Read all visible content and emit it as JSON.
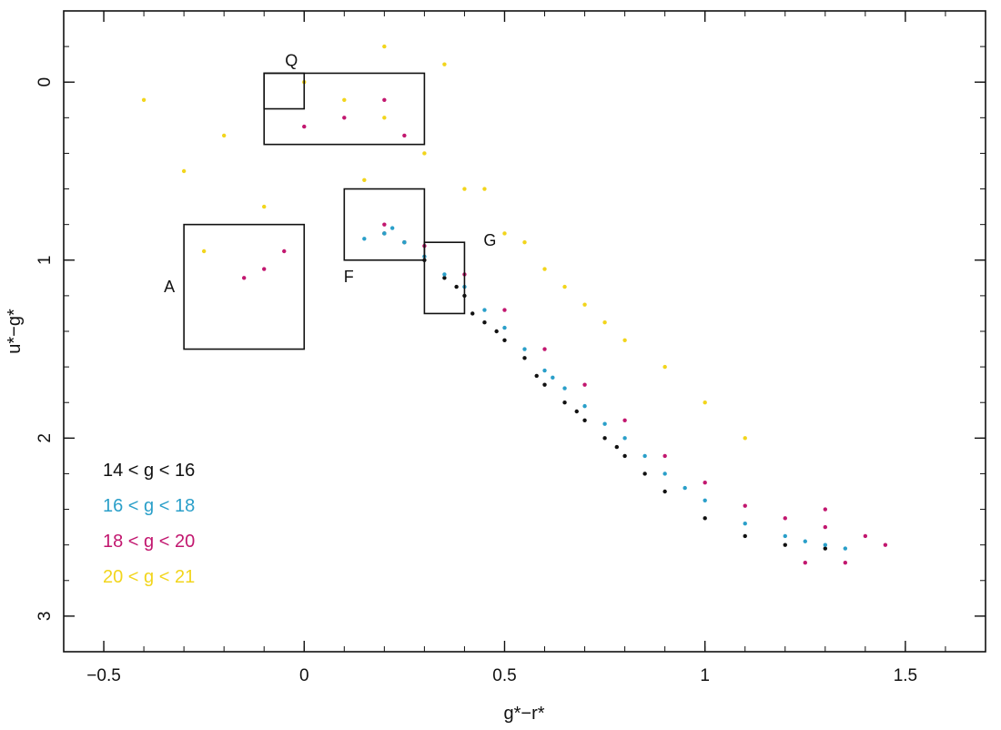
{
  "chart_data": {
    "type": "scatter",
    "xlabel": "g*−r*",
    "ylabel": "u*−g*",
    "xlim": [
      -0.6,
      1.7
    ],
    "ylim": [
      3.2,
      -0.4
    ],
    "y_inverted": true,
    "grid": false,
    "x_ticks": [
      {
        "value": -0.5,
        "label": "−0.5"
      },
      {
        "value": 0,
        "label": "0"
      },
      {
        "value": 0.5,
        "label": "0.5"
      },
      {
        "value": 1,
        "label": "1"
      },
      {
        "value": 1.5,
        "label": "1.5"
      }
    ],
    "y_ticks": [
      {
        "value": 0,
        "label": "0"
      },
      {
        "value": 1,
        "label": "1"
      },
      {
        "value": 2,
        "label": "2"
      },
      {
        "value": 3,
        "label": "3"
      }
    ],
    "legend_position": "bottom-left",
    "series": [
      {
        "name": "14 < g < 16",
        "color": "#111111",
        "points": [
          [
            0.2,
            0.85
          ],
          [
            0.25,
            0.9
          ],
          [
            0.3,
            1.0
          ],
          [
            0.35,
            1.1
          ],
          [
            0.4,
            1.2
          ],
          [
            0.45,
            1.35
          ],
          [
            0.5,
            1.45
          ],
          [
            0.55,
            1.55
          ],
          [
            0.6,
            1.7
          ],
          [
            0.65,
            1.8
          ],
          [
            0.7,
            1.9
          ],
          [
            0.75,
            2.0
          ],
          [
            0.8,
            2.1
          ],
          [
            0.85,
            2.2
          ],
          [
            0.9,
            2.3
          ],
          [
            1.0,
            2.45
          ],
          [
            1.1,
            2.55
          ],
          [
            1.2,
            2.6
          ],
          [
            1.3,
            2.62
          ],
          [
            0.38,
            1.15
          ],
          [
            0.42,
            1.3
          ],
          [
            0.48,
            1.4
          ],
          [
            0.58,
            1.65
          ],
          [
            0.68,
            1.85
          ],
          [
            0.78,
            2.05
          ]
        ]
      },
      {
        "name": "16 < g < 18",
        "color": "#2a9fc9",
        "points": [
          [
            0.2,
            0.85
          ],
          [
            0.25,
            0.9
          ],
          [
            0.3,
            0.98
          ],
          [
            0.35,
            1.08
          ],
          [
            0.4,
            1.15
          ],
          [
            0.45,
            1.28
          ],
          [
            0.5,
            1.38
          ],
          [
            0.55,
            1.5
          ],
          [
            0.6,
            1.62
          ],
          [
            0.65,
            1.72
          ],
          [
            0.7,
            1.82
          ],
          [
            0.8,
            2.0
          ],
          [
            0.9,
            2.2
          ],
          [
            1.0,
            2.35
          ],
          [
            1.1,
            2.48
          ],
          [
            1.2,
            2.55
          ],
          [
            1.3,
            2.6
          ],
          [
            1.35,
            2.62
          ],
          [
            0.15,
            0.88
          ],
          [
            0.22,
            0.82
          ],
          [
            0.62,
            1.66
          ],
          [
            0.75,
            1.92
          ],
          [
            0.85,
            2.1
          ],
          [
            0.95,
            2.28
          ],
          [
            1.25,
            2.58
          ]
        ]
      },
      {
        "name": "18 < g < 20",
        "color": "#c2176f",
        "points": [
          [
            0.2,
            0.8
          ],
          [
            0.3,
            0.92
          ],
          [
            0.4,
            1.08
          ],
          [
            0.5,
            1.28
          ],
          [
            0.6,
            1.5
          ],
          [
            0.7,
            1.7
          ],
          [
            0.8,
            1.9
          ],
          [
            0.9,
            2.1
          ],
          [
            1.0,
            2.25
          ],
          [
            1.1,
            2.38
          ],
          [
            1.2,
            2.45
          ],
          [
            1.3,
            2.5
          ],
          [
            1.4,
            2.55
          ],
          [
            1.45,
            2.6
          ],
          [
            -0.15,
            1.1
          ],
          [
            -0.1,
            1.05
          ],
          [
            -0.05,
            0.95
          ],
          [
            0.0,
            0.25
          ],
          [
            0.1,
            0.2
          ],
          [
            0.2,
            0.1
          ],
          [
            0.25,
            0.3
          ],
          [
            1.3,
            2.4
          ],
          [
            1.35,
            2.7
          ],
          [
            1.25,
            2.7
          ]
        ]
      },
      {
        "name": "20 < g < 21",
        "color": "#f2d51c",
        "points": [
          [
            0.0,
            0.0
          ],
          [
            0.1,
            0.1
          ],
          [
            0.2,
            0.2
          ],
          [
            0.3,
            0.4
          ],
          [
            0.4,
            0.6
          ],
          [
            0.5,
            0.85
          ],
          [
            0.6,
            1.05
          ],
          [
            0.7,
            1.25
          ],
          [
            0.8,
            1.45
          ],
          [
            0.9,
            1.6
          ],
          [
            1.0,
            1.8
          ],
          [
            1.1,
            2.0
          ],
          [
            -0.2,
            0.3
          ],
          [
            -0.3,
            0.5
          ],
          [
            -0.4,
            0.1
          ],
          [
            0.2,
            -0.2
          ],
          [
            0.35,
            -0.1
          ],
          [
            0.45,
            0.6
          ],
          [
            0.55,
            0.9
          ],
          [
            0.65,
            1.15
          ],
          [
            0.75,
            1.35
          ],
          [
            -0.1,
            0.7
          ],
          [
            -0.25,
            0.95
          ],
          [
            0.15,
            0.55
          ]
        ]
      }
    ],
    "regions": [
      {
        "label": "Q",
        "x": [
          -0.1,
          0.3
        ],
        "y": [
          -0.05,
          0.35
        ]
      },
      {
        "label": "",
        "x": [
          -0.1,
          0.0
        ],
        "y": [
          -0.05,
          0.15
        ]
      },
      {
        "label": "A",
        "x": [
          -0.3,
          0.0
        ],
        "y": [
          0.8,
          1.5
        ]
      },
      {
        "label": "F",
        "x": [
          0.1,
          0.3
        ],
        "y": [
          0.6,
          1.0
        ]
      },
      {
        "label": "G",
        "x": [
          0.3,
          0.4
        ],
        "y": [
          0.9,
          1.3
        ]
      }
    ]
  }
}
